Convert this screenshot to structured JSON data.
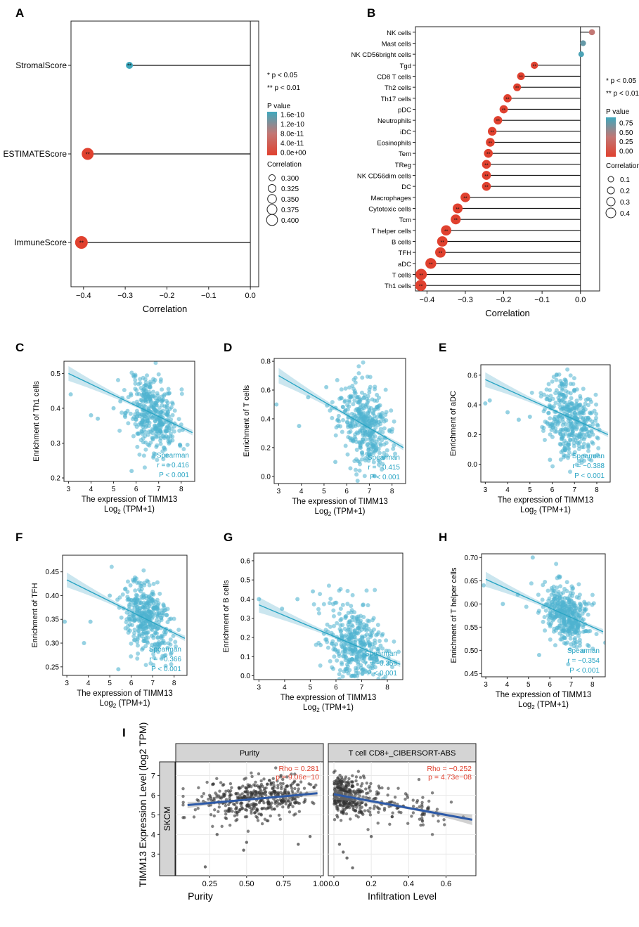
{
  "colors": {
    "point_blue": "#4fb3cf",
    "line_blue": "#2aa5c4",
    "band_blue": "#b9dde9",
    "red": "#e0412f",
    "mid": "#c27774",
    "teal": "#3fa8bd",
    "gray_pt": "#333333",
    "strip": "#d4d4d4",
    "tcga_line": "#2d5aa8",
    "tcga_text": "#e0412f",
    "grid": "#e9e9e9"
  },
  "panels": {
    "A": {
      "label": "A"
    },
    "B": {
      "label": "B"
    },
    "C": {
      "label": "C"
    },
    "D": {
      "label": "D"
    },
    "E": {
      "label": "E"
    },
    "F": {
      "label": "F"
    },
    "G": {
      "label": "G"
    },
    "H": {
      "label": "H"
    },
    "I": {
      "label": "I"
    }
  },
  "chart_data": [
    {
      "id": "A",
      "type": "lollipop",
      "categories": [
        "StromalScore",
        "ESTIMATEScore",
        "ImmuneScore"
      ],
      "values": [
        -0.29,
        -0.39,
        -0.405
      ],
      "pvalues": [
        1.6e-10,
        0.0,
        0.0
      ],
      "significance": [
        "**",
        "**",
        "**"
      ],
      "xlabel": "Correlation",
      "xlim": [
        -0.43,
        0.02
      ],
      "xticks": [
        "-0.4",
        "-0.3",
        "-0.2",
        "-0.1",
        "0.0"
      ],
      "xtick_values": [
        -0.4,
        -0.3,
        -0.2,
        -0.1,
        0.0
      ],
      "sig_legend": [
        "* p < 0.05",
        "** p < 0.01"
      ],
      "pvalue_legend_title": "P value",
      "pvalue_legend_ticks": [
        "1.6e-10",
        "1.2e-10",
        "8.0e-11",
        "4.0e-11",
        "0.0e+00"
      ],
      "size_legend_title": "Correlation",
      "size_legend_values": [
        "0.300",
        "0.325",
        "0.350",
        "0.375",
        "0.400"
      ]
    },
    {
      "id": "B",
      "type": "lollipop",
      "categories": [
        "NK cells",
        "Mast cells",
        "NK CD56bright cells",
        "Tgd",
        "CD8 T cells",
        "Th2 cells",
        "Th17 cells",
        "pDC",
        "Neutrophils",
        "iDC",
        "Eosinophils",
        "Tem",
        "TReg",
        "NK CD56dim cells",
        "DC",
        "Macrophages",
        "Cytotoxic cells",
        "Tcm",
        "T helper cells",
        "B cells",
        "TFH",
        "aDC",
        "T cells",
        "Th1 cells"
      ],
      "values": [
        0.03,
        0.007,
        0.002,
        -0.12,
        -0.155,
        -0.165,
        -0.19,
        -0.2,
        -0.215,
        -0.23,
        -0.235,
        -0.24,
        -0.245,
        -0.245,
        -0.245,
        -0.3,
        -0.32,
        -0.325,
        -0.35,
        -0.36,
        -0.365,
        -0.39,
        -0.415,
        -0.416
      ],
      "pvalues": [
        0.5,
        0.85,
        0.95,
        0.02,
        0,
        0,
        0,
        0,
        0,
        0,
        0,
        0,
        0,
        0,
        0,
        0,
        0,
        0,
        0,
        0,
        0,
        0,
        0,
        0
      ],
      "significance": [
        "",
        "",
        "",
        "**",
        "**",
        "**",
        "**",
        "**",
        "**",
        "**",
        "**",
        "**",
        "**",
        "**",
        "**",
        "**",
        "**",
        "**",
        "**",
        "**",
        "**",
        "**",
        "**",
        "**"
      ],
      "xlabel": "Correlation",
      "xlim": [
        -0.43,
        0.05
      ],
      "xticks": [
        "-0.4",
        "-0.3",
        "-0.2",
        "-0.1",
        "0.0"
      ],
      "xtick_values": [
        -0.4,
        -0.3,
        -0.2,
        -0.1,
        0.0
      ],
      "sig_legend": [
        "* p < 0.05",
        "** p < 0.01"
      ],
      "pvalue_legend_title": "P value",
      "pvalue_legend_ticks": [
        "0.75",
        "0.50",
        "0.25",
        "0.00"
      ],
      "size_legend_title": "Correlation",
      "size_legend_values": [
        "0.1",
        "0.2",
        "0.3",
        "0.4"
      ]
    },
    {
      "id": "C",
      "type": "scatter",
      "ylabel": "Enrichment of Th1 cells",
      "xlabel": "The expression of TIMM13",
      "xlabel2": "Log",
      "xlim": [
        2.8,
        8.6
      ],
      "ylim": [
        0.19,
        0.535
      ],
      "xticks": [
        3,
        4,
        5,
        6,
        7,
        8
      ],
      "yticks": [
        0.2,
        0.3,
        0.4,
        0.5
      ],
      "ytick_labels": [
        "0.2",
        "0.3",
        "0.4",
        "0.5"
      ],
      "fit": [
        3,
        0.5,
        8.5,
        0.33
      ],
      "cloud": {
        "cx": 6.75,
        "sx": 0.55,
        "sy": 0.055,
        "n": 380,
        "seed": 11
      },
      "outliers": [
        [
          3.1,
          0.44
        ],
        [
          4.0,
          0.38
        ],
        [
          4.3,
          0.37
        ],
        [
          5.0,
          0.4
        ],
        [
          5.8,
          0.22
        ],
        [
          5.3,
          0.42
        ]
      ],
      "stat": {
        "method": "Spearman",
        "r": "r = −0.416",
        "p": "P < 0.001"
      }
    },
    {
      "id": "D",
      "type": "scatter",
      "ylabel": "Enrichment of T cells",
      "xlabel": "The expression of TIMM13",
      "xlabel2": "Log",
      "xlim": [
        2.8,
        8.6
      ],
      "ylim": [
        -0.05,
        0.82
      ],
      "xticks": [
        3,
        4,
        5,
        6,
        7,
        8
      ],
      "yticks": [
        0.0,
        0.2,
        0.4,
        0.6,
        0.8
      ],
      "ytick_labels": [
        "0.0",
        "0.2",
        "0.4",
        "0.6",
        "0.8"
      ],
      "fit": [
        3,
        0.7,
        8.5,
        0.2
      ],
      "cloud": {
        "cx": 6.75,
        "sx": 0.55,
        "sy": 0.14,
        "n": 380,
        "seed": 23
      },
      "outliers": [
        [
          2.9,
          0.5
        ],
        [
          3.9,
          0.35
        ],
        [
          4.3,
          0.55
        ],
        [
          5.5,
          0.1
        ],
        [
          5.1,
          0.62
        ]
      ],
      "stat": {
        "method": "Spearman",
        "r": "r = −0.415",
        "p": "P < 0.001"
      }
    },
    {
      "id": "E",
      "type": "scatter",
      "ylabel": "Enrichment of aDC",
      "xlabel": "The expression of TIMM13",
      "xlabel2": "Log",
      "xlim": [
        2.8,
        8.6
      ],
      "ylim": [
        -0.12,
        0.67
      ],
      "xticks": [
        3,
        4,
        5,
        6,
        7,
        8
      ],
      "yticks": [
        0.0,
        0.2,
        0.4,
        0.6
      ],
      "ytick_labels": [
        "0.0",
        "0.2",
        "0.4",
        "0.6"
      ],
      "fit": [
        3,
        0.57,
        8.5,
        0.2
      ],
      "cloud": {
        "cx": 6.8,
        "sx": 0.55,
        "sy": 0.13,
        "n": 380,
        "seed": 37
      },
      "outliers": [
        [
          3.0,
          0.41
        ],
        [
          3.2,
          0.43
        ],
        [
          4.0,
          0.35
        ],
        [
          4.5,
          0.3
        ],
        [
          5.0,
          0.32
        ],
        [
          5.9,
          0.03
        ]
      ],
      "stat": {
        "method": "Spearman",
        "r": "r = −0.388",
        "p": "P < 0.001"
      }
    },
    {
      "id": "F",
      "type": "scatter",
      "ylabel": "Enrichment of TFH",
      "xlabel": "The expression of TIMM13",
      "xlabel2": "Log",
      "xlim": [
        2.8,
        8.6
      ],
      "ylim": [
        0.232,
        0.485
      ],
      "xticks": [
        3,
        4,
        5,
        6,
        7,
        8
      ],
      "yticks": [
        0.25,
        0.3,
        0.35,
        0.4,
        0.45
      ],
      "ytick_labels": [
        "0.25",
        "0.30",
        "0.35",
        "0.40",
        "0.45"
      ],
      "fit": [
        3,
        0.433,
        8.5,
        0.31
      ],
      "cloud": {
        "cx": 6.75,
        "sx": 0.55,
        "sy": 0.038,
        "n": 380,
        "seed": 51
      },
      "outliers": [
        [
          2.9,
          0.345
        ],
        [
          3.8,
          0.3
        ],
        [
          4.1,
          0.345
        ],
        [
          5.4,
          0.245
        ],
        [
          5.0,
          0.4
        ]
      ],
      "stat": {
        "method": "Spearman",
        "r": "r = −0.366",
        "p": "P < 0.001"
      }
    },
    {
      "id": "G",
      "type": "scatter",
      "ylabel": "Enrichment of B cells",
      "xlabel": "The expression of TIMM13",
      "xlabel2": "Log",
      "xlim": [
        2.8,
        8.6
      ],
      "ylim": [
        -0.02,
        0.64
      ],
      "xticks": [
        3,
        4,
        5,
        6,
        7,
        8
      ],
      "yticks": [
        0.0,
        0.1,
        0.2,
        0.3,
        0.4,
        0.5,
        0.6
      ],
      "ytick_labels": [
        "0.0",
        "0.1",
        "0.2",
        "0.3",
        "0.4",
        "0.5",
        "0.6"
      ],
      "fit": [
        3,
        0.37,
        8.5,
        0.06
      ],
      "cloud": {
        "cx": 6.75,
        "sx": 0.55,
        "sy": 0.11,
        "n": 380,
        "seed": 63
      },
      "outliers": [
        [
          3.0,
          0.4
        ],
        [
          3.9,
          0.35
        ],
        [
          4.5,
          0.4
        ],
        [
          5.4,
          0.16
        ],
        [
          5.1,
          0.44
        ]
      ],
      "stat": {
        "method": "Spearman",
        "r": "r = −0.359",
        "p": "P < 0.001"
      }
    },
    {
      "id": "H",
      "type": "scatter",
      "ylabel": "Enrichment of T helper cells",
      "xlabel": "The expression of TIMM13",
      "xlabel2": "Log",
      "xlim": [
        2.8,
        8.6
      ],
      "ylim": [
        0.443,
        0.708
      ],
      "xticks": [
        3,
        4,
        5,
        6,
        7,
        8
      ],
      "yticks": [
        0.45,
        0.5,
        0.55,
        0.6,
        0.65,
        0.7
      ],
      "ytick_labels": [
        "0.45",
        "0.50",
        "0.55",
        "0.60",
        "0.65",
        "0.70"
      ],
      "fit": [
        3,
        0.653,
        8.5,
        0.54
      ],
      "cloud": {
        "cx": 6.75,
        "sx": 0.55,
        "sy": 0.032,
        "n": 380,
        "seed": 77
      },
      "outliers": [
        [
          2.9,
          0.64
        ],
        [
          3.8,
          0.6
        ],
        [
          4.5,
          0.62
        ],
        [
          5.2,
          0.7
        ],
        [
          5.5,
          0.49
        ]
      ],
      "stat": {
        "method": "Spearman",
        "r": "r = −0.354",
        "p": "P < 0.001"
      }
    },
    {
      "id": "I",
      "type": "scatter-facet",
      "ylabel": "TIMM13 Expression Level (log2 TPM)",
      "row_label": "SKCM",
      "ylim": [
        1.9,
        7.7
      ],
      "yticks": [
        3,
        4,
        5,
        6,
        7
      ],
      "ytick_labels": [
        "3",
        "4",
        "5",
        "6",
        "7"
      ],
      "facets": [
        {
          "title": "Purity",
          "xlabel": "Purity",
          "xlim": [
            0.02,
            1.02
          ],
          "xticks": [
            0.25,
            0.5,
            0.75,
            1.0
          ],
          "xtick_labels": [
            "0.25",
            "0.50",
            "0.75",
            "1.00"
          ],
          "fit": [
            0.1,
            5.5,
            0.98,
            6.1
          ],
          "band": 0.12,
          "stat1": "Rho = 0.281",
          "stat2": "p = 9.06e−10",
          "cloud": {
            "kind": "purity",
            "n": 440,
            "seed": 91
          },
          "outliers": [
            [
              0.22,
              2.35
            ],
            [
              0.48,
              3.2
            ],
            [
              0.5,
              3.6
            ],
            [
              0.85,
              3.5
            ],
            [
              0.3,
              4.0
            ],
            [
              0.93,
              3.9
            ]
          ]
        },
        {
          "title": "T cell CD8+_CIBERSORT-ABS",
          "xlabel": "Infiltration Level",
          "xlim": [
            -0.03,
            0.76
          ],
          "xticks": [
            0.0,
            0.2,
            0.4,
            0.6
          ],
          "xtick_labels": [
            "0.0",
            "0.2",
            "0.4",
            "0.6"
          ],
          "fit": [
            0.0,
            6.05,
            0.74,
            4.75
          ],
          "band": 0.2,
          "stat1": "Rho = −0.252",
          "stat2": "p = 4.73e−08",
          "cloud": {
            "kind": "infil",
            "n": 440,
            "seed": 97
          },
          "outliers": [
            [
              0.1,
              2.3
            ],
            [
              0.05,
              3.1
            ],
            [
              0.03,
              3.5
            ],
            [
              0.2,
              3.9
            ],
            [
              0.07,
              2.8
            ]
          ]
        }
      ]
    }
  ]
}
